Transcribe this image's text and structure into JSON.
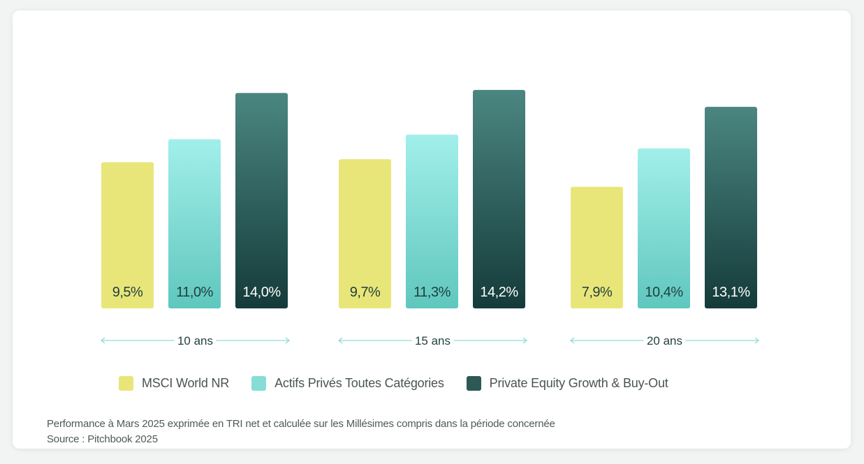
{
  "chart_data": {
    "type": "bar",
    "categories": [
      "10 ans",
      "15 ans",
      "20 ans"
    ],
    "series": [
      {
        "name": "MSCI World NR",
        "values": [
          9.5,
          9.7,
          7.9
        ],
        "labels": [
          "9,5%",
          "9,7%",
          "7,9%"
        ],
        "color_top": "#e9e679",
        "color_bottom": "#e9e679",
        "text_color": "#1f3f3d"
      },
      {
        "name": "Actifs Privés Toutes Catégories",
        "values": [
          11.0,
          11.3,
          10.4
        ],
        "labels": [
          "11,0%",
          "11,3%",
          "10,4%"
        ],
        "color_top": "#a2efea",
        "color_bottom": "#5fc7be",
        "text_color": "#1f3f3d"
      },
      {
        "name": "Private Equity Growth & Buy-Out",
        "values": [
          14.0,
          14.2,
          13.1
        ],
        "labels": [
          "14,0%",
          "14,2%",
          "13,1%"
        ],
        "color_top": "#4b8681",
        "color_bottom": "#143b3a",
        "text_color": "#ffffff"
      }
    ],
    "title": "",
    "xlabel": "",
    "ylabel": "",
    "ylim": [
      0,
      15
    ],
    "grid": false,
    "legend_position": "bottom-left"
  },
  "legend": [
    {
      "label": "MSCI World NR",
      "color": "#e9e679"
    },
    {
      "label": "Actifs Privés Toutes Catégories",
      "color": "#85ddd6"
    },
    {
      "label": "Private Equity Growth & Buy-Out",
      "color": "#2c5856"
    }
  ],
  "footnote": {
    "line1": "Performance à Mars 2025 exprimée en TRI net et calculée sur les Millésimes compris dans la période concernée",
    "line2": "Source : Pitchbook 2025"
  },
  "colors": {
    "arrow": "#8fdcd6",
    "period_text": "#1f3f3d"
  }
}
